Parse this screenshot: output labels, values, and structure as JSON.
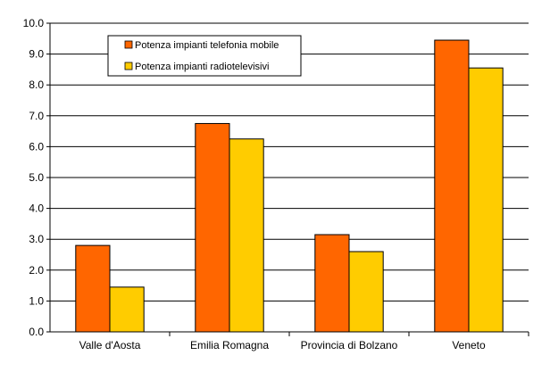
{
  "chart_data": {
    "type": "bar",
    "title": "",
    "xlabel": "",
    "ylabel": "",
    "categories": [
      "Valle d'Aosta",
      "Emilia Romagna",
      "Provincia di Bolzano",
      "Veneto"
    ],
    "series": [
      {
        "name": "Potenza impianti telefonia mobile",
        "color": "#ff6600",
        "values": [
          2.8,
          6.75,
          3.15,
          9.45
        ]
      },
      {
        "name": "Potenza impianti radiotelevisivi",
        "color": "#ffcc00",
        "values": [
          1.45,
          6.25,
          2.6,
          8.55
        ]
      }
    ],
    "ylim": [
      0,
      10
    ],
    "yticks": [
      0,
      1,
      2,
      3,
      4,
      5,
      6,
      7,
      8,
      9,
      10
    ],
    "ytick_labels": [
      "0.0",
      "1.0",
      "2.0",
      "3.0",
      "4.0",
      "5.0",
      "6.0",
      "7.0",
      "8.0",
      "9.0",
      "10.0"
    ],
    "grid": true,
    "legend_position": "top-left"
  }
}
